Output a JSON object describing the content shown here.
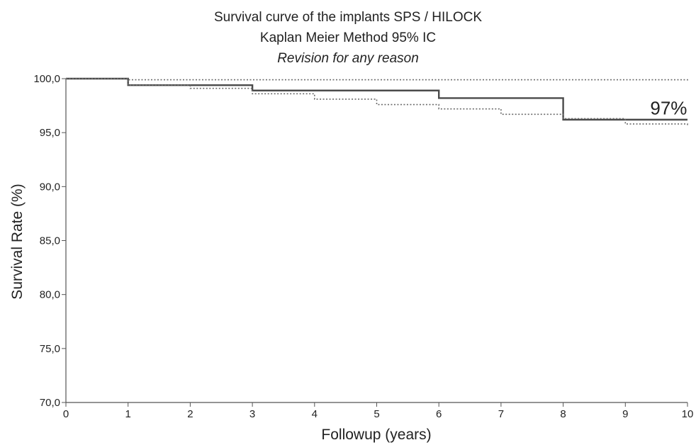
{
  "chart_data": {
    "type": "line",
    "title": "Survival curve of the implants SPS / HILOCK",
    "subtitle": "Kaplan Meier Method  95% IC",
    "subtitle2": "Revision for any reason",
    "xlabel": "Followup (years)",
    "ylabel": "Survival Rate (%)",
    "xlim": [
      0,
      10
    ],
    "ylim": [
      70,
      100
    ],
    "x_ticks": [
      "0",
      "1",
      "2",
      "3",
      "4",
      "5",
      "6",
      "7",
      "8",
      "9",
      "10"
    ],
    "y_ticks": [
      "70,0",
      "75,0",
      "80,0",
      "85,0",
      "90,0",
      "95,0",
      "100,0"
    ],
    "grid": false,
    "step": true,
    "series": [
      {
        "style": "solid",
        "color": "#4a4a4a",
        "x": [
          0,
          1,
          3,
          6,
          8,
          10
        ],
        "y": [
          100,
          99.4,
          98.9,
          98.2,
          96.2,
          96.2
        ]
      },
      {
        "style": "dotted",
        "color": "#6a6a6a",
        "x": [
          0,
          1,
          8,
          10
        ],
        "y": [
          100,
          99.9,
          99.9,
          99.8
        ]
      },
      {
        "style": "dotted",
        "color": "#6a6a6a",
        "x": [
          0,
          1,
          2,
          3,
          4,
          5,
          6,
          7,
          8,
          9,
          10
        ],
        "y": [
          100,
          99.4,
          99.1,
          98.6,
          98.1,
          97.6,
          97.2,
          96.7,
          96.3,
          95.8,
          95.6
        ]
      }
    ],
    "annotations": [
      {
        "text": "97%",
        "x": 9.4,
        "y": 96.7
      }
    ]
  }
}
